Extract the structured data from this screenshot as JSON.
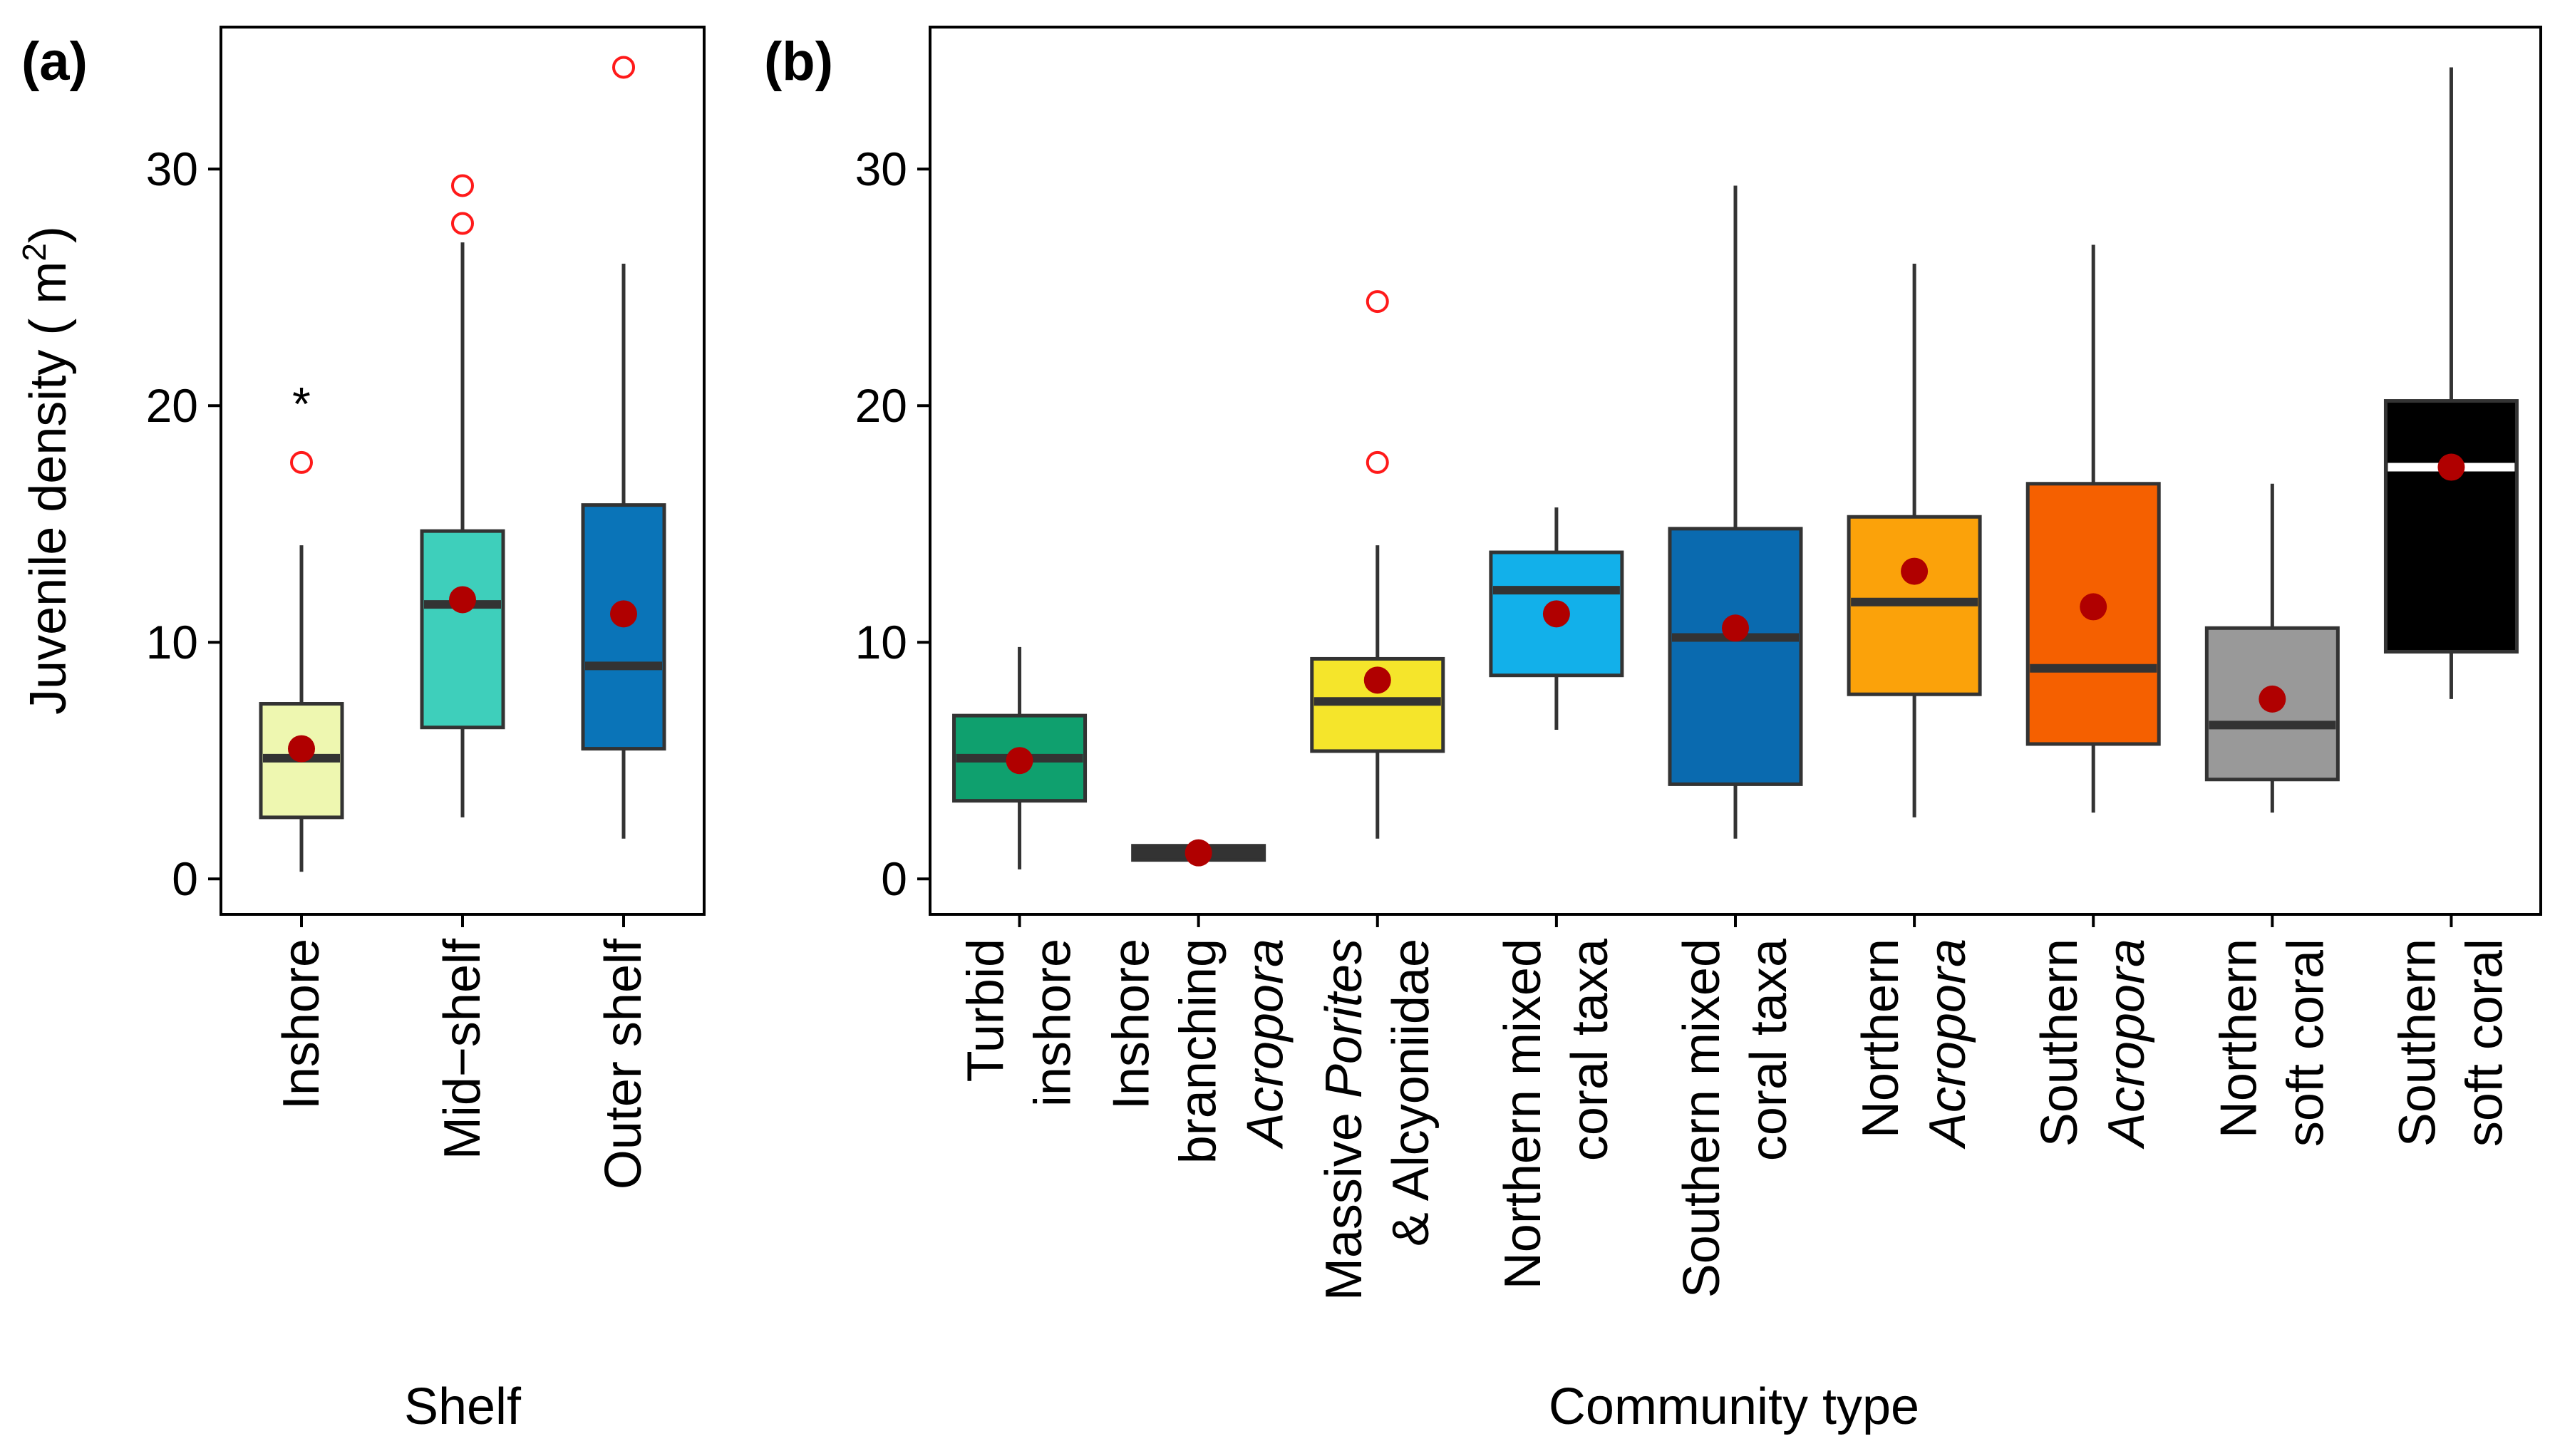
{
  "chart_data": [
    {
      "type": "boxplot",
      "panel_label": "(a)",
      "xlabel": "Shelf",
      "ylabel_main": "Juvenile density ( m",
      "ylabel_sup": "2",
      "ylabel_end": ")",
      "ylim": [
        -1.5,
        36
      ],
      "yticks": [
        0,
        10,
        20,
        30
      ],
      "categories": [
        {
          "lines": [
            [
              {
                "t": "Inshore",
                "i": false
              }
            ]
          ],
          "color": "#eef7b0",
          "median_color": "#333333",
          "q1": 2.6,
          "median": 5.1,
          "q3": 7.4,
          "whisker_low": 0.3,
          "whisker_high": 14.1,
          "mean": 5.5,
          "outliers": [
            17.6
          ],
          "annotation": "*",
          "annotation_y": 20.6
        },
        {
          "lines": [
            [
              {
                "t": "Mid−shelf",
                "i": false
              }
            ]
          ],
          "color": "#3ecfbb",
          "median_color": "#333333",
          "q1": 6.4,
          "median": 11.6,
          "q3": 14.7,
          "whisker_low": 2.6,
          "whisker_high": 26.9,
          "mean": 11.8,
          "outliers": [
            27.7,
            29.3
          ],
          "annotation": "",
          "annotation_y": 0
        },
        {
          "lines": [
            [
              {
                "t": "Outer shelf",
                "i": false
              }
            ]
          ],
          "color": "#0a74b8",
          "median_color": "#333333",
          "q1": 5.5,
          "median": 9.0,
          "q3": 15.8,
          "whisker_low": 1.7,
          "whisker_high": 26.0,
          "mean": 11.2,
          "outliers": [
            34.3
          ],
          "annotation": "",
          "annotation_y": 0
        }
      ]
    },
    {
      "type": "boxplot",
      "panel_label": "(b)",
      "xlabel": "Community type",
      "ylim": [
        -1.5,
        36
      ],
      "yticks": [
        0,
        10,
        20,
        30
      ],
      "categories": [
        {
          "lines": [
            [
              {
                "t": "Turbid",
                "i": false
              }
            ],
            [
              {
                "t": "inshore",
                "i": false
              }
            ]
          ],
          "color": "#0fa06e",
          "median_color": "#333333",
          "q1": 3.3,
          "median": 5.1,
          "q3": 6.9,
          "whisker_low": 0.4,
          "whisker_high": 9.8,
          "mean": 5.0,
          "outliers": []
        },
        {
          "lines": [
            [
              {
                "t": "Inshore",
                "i": false
              }
            ],
            [
              {
                "t": "branching",
                "i": false
              }
            ],
            [
              {
                "t": "Acropora",
                "i": true
              }
            ]
          ],
          "color": "#333333",
          "median_color": "#333333",
          "q1": 0.8,
          "median": 1.1,
          "q3": 1.4,
          "whisker_low": 0.8,
          "whisker_high": 1.4,
          "mean": 1.1,
          "outliers": []
        },
        {
          "lines": [
            [
              {
                "t": "Massive ",
                "i": false
              },
              {
                "t": "Porites",
                "i": true
              }
            ],
            [
              {
                "t": "& Alcyoniidae",
                "i": false
              }
            ]
          ],
          "color": "#f5e52b",
          "median_color": "#333333",
          "q1": 5.4,
          "median": 7.5,
          "q3": 9.3,
          "whisker_low": 1.7,
          "whisker_high": 14.1,
          "mean": 8.4,
          "outliers": [
            17.6,
            24.4
          ]
        },
        {
          "lines": [
            [
              {
                "t": "Northern mixed",
                "i": false
              }
            ],
            [
              {
                "t": "coral taxa",
                "i": false
              }
            ]
          ],
          "color": "#12b0ea",
          "median_color": "#333333",
          "q1": 8.6,
          "median": 12.2,
          "q3": 13.8,
          "whisker_low": 6.3,
          "whisker_high": 15.7,
          "mean": 11.2,
          "outliers": []
        },
        {
          "lines": [
            [
              {
                "t": "Southern mixed",
                "i": false
              }
            ],
            [
              {
                "t": "coral taxa",
                "i": false
              }
            ]
          ],
          "color": "#0a6aaf",
          "median_color": "#333333",
          "q1": 4.0,
          "median": 10.2,
          "q3": 14.8,
          "whisker_low": 1.7,
          "whisker_high": 29.3,
          "mean": 10.6,
          "outliers": []
        },
        {
          "lines": [
            [
              {
                "t": "Northern",
                "i": false
              }
            ],
            [
              {
                "t": "Acropora",
                "i": true
              }
            ]
          ],
          "color": "#fba20a",
          "median_color": "#333333",
          "q1": 7.8,
          "median": 11.7,
          "q3": 15.3,
          "whisker_low": 2.6,
          "whisker_high": 26.0,
          "mean": 13.0,
          "outliers": []
        },
        {
          "lines": [
            [
              {
                "t": "Southern",
                "i": false
              }
            ],
            [
              {
                "t": "Acropora",
                "i": true
              }
            ]
          ],
          "color": "#f56000",
          "median_color": "#333333",
          "q1": 5.7,
          "median": 8.9,
          "q3": 16.7,
          "whisker_low": 2.8,
          "whisker_high": 26.8,
          "mean": 11.5,
          "outliers": []
        },
        {
          "lines": [
            [
              {
                "t": "Northern",
                "i": false
              }
            ],
            [
              {
                "t": "soft coral",
                "i": false
              }
            ]
          ],
          "color": "#999999",
          "median_color": "#333333",
          "q1": 4.2,
          "median": 6.5,
          "q3": 10.6,
          "whisker_low": 2.8,
          "whisker_high": 16.7,
          "mean": 7.6,
          "outliers": []
        },
        {
          "lines": [
            [
              {
                "t": "Southern",
                "i": false
              }
            ],
            [
              {
                "t": "soft coral",
                "i": false
              }
            ]
          ],
          "color": "#000000",
          "median_color": "#ffffff",
          "q1": 9.6,
          "median": 17.4,
          "q3": 20.2,
          "whisker_low": 7.6,
          "whisker_high": 34.3,
          "mean": 17.4,
          "outliers": []
        }
      ]
    }
  ]
}
